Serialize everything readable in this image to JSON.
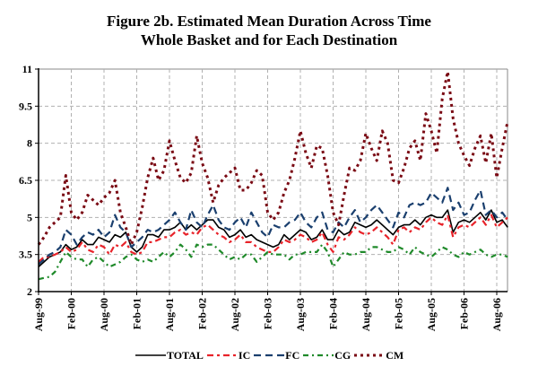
{
  "chart_data": {
    "type": "line",
    "title": "Figure 2b. Estimated Mean Duration Across Time",
    "subtitle": "Whole Basket and for Each Destination",
    "xlabel": "",
    "ylabel": "",
    "ylim": [
      2,
      11
    ],
    "yticks": [
      "2",
      "3.5",
      "5",
      "6.5",
      "8",
      "9.5",
      "11"
    ],
    "ytick_values": [
      2,
      3.5,
      5,
      6.5,
      8,
      9.5,
      11
    ],
    "grid": true,
    "legend_position": "bottom",
    "x_start": "Aug-99",
    "x_frequency": "monthly",
    "xtick_labels": [
      "Aug-99",
      "Feb-00",
      "Aug-00",
      "Feb-01",
      "Aug-01",
      "Feb-02",
      "Aug-02",
      "Feb-03",
      "Aug-03",
      "Feb-04",
      "Aug-04",
      "Feb-05",
      "Aug-05",
      "Feb-06",
      "Aug-06"
    ],
    "xtick_month_index": [
      0,
      6,
      12,
      18,
      24,
      30,
      36,
      42,
      48,
      54,
      60,
      66,
      72,
      78,
      84
    ],
    "n_points": 87,
    "series": [
      {
        "name": "TOTAL",
        "color": "#000000",
        "dash": "solid",
        "values": [
          3.0,
          3.2,
          3.4,
          3.5,
          3.6,
          3.9,
          3.7,
          3.8,
          4.1,
          3.9,
          3.9,
          4.2,
          4.1,
          4.0,
          4.3,
          4.2,
          4.4,
          3.8,
          3.6,
          3.8,
          4.3,
          4.3,
          4.2,
          4.5,
          4.5,
          4.6,
          4.8,
          4.5,
          4.7,
          4.5,
          4.7,
          4.9,
          4.9,
          4.6,
          4.5,
          4.2,
          4.3,
          4.5,
          4.2,
          4.3,
          4.1,
          4.0,
          3.9,
          3.8,
          3.9,
          4.3,
          4.1,
          4.3,
          4.5,
          4.4,
          4.1,
          4.2,
          4.5,
          4.1,
          4.1,
          4.5,
          4.3,
          4.4,
          4.8,
          4.7,
          4.6,
          4.7,
          4.9,
          4.7,
          4.5,
          4.3,
          4.6,
          4.7,
          4.7,
          4.9,
          4.7,
          5.0,
          5.1,
          5.0,
          5.0,
          5.3,
          4.4,
          4.8,
          4.9,
          4.8,
          5.0,
          5.2,
          4.9,
          5.3,
          4.8,
          4.9,
          4.6
        ]
      },
      {
        "name": "IC",
        "color": "#e8232a",
        "dash": "dash",
        "values": [
          3.2,
          3.4,
          3.4,
          3.5,
          3.6,
          3.8,
          3.6,
          3.7,
          4.0,
          3.7,
          3.6,
          3.9,
          3.8,
          3.5,
          3.9,
          3.8,
          4.0,
          3.6,
          3.5,
          3.6,
          4.0,
          4.0,
          4.1,
          4.2,
          4.2,
          4.4,
          4.5,
          4.3,
          4.4,
          4.3,
          4.6,
          4.7,
          4.5,
          4.3,
          4.2,
          4.0,
          4.1,
          4.3,
          4.0,
          4.0,
          3.8,
          3.7,
          3.6,
          3.6,
          3.8,
          4.1,
          4.0,
          4.1,
          4.3,
          4.2,
          4.0,
          4.1,
          4.4,
          3.9,
          3.6,
          4.2,
          4.1,
          4.3,
          4.6,
          4.4,
          4.3,
          4.4,
          4.6,
          4.4,
          4.2,
          3.9,
          4.5,
          4.6,
          4.4,
          4.6,
          4.5,
          4.8,
          5.0,
          4.8,
          4.7,
          5.1,
          4.2,
          4.6,
          4.7,
          4.6,
          4.8,
          5.0,
          4.7,
          5.1,
          4.6,
          4.8,
          5.0
        ]
      },
      {
        "name": "FC",
        "color": "#1a3f6e",
        "dash": "longdash",
        "values": [
          3.1,
          3.3,
          3.5,
          3.6,
          3.8,
          4.5,
          4.3,
          3.9,
          4.2,
          4.4,
          4.3,
          4.5,
          4.2,
          4.4,
          5.1,
          4.6,
          4.4,
          3.8,
          4.0,
          4.2,
          4.5,
          4.4,
          4.5,
          4.7,
          4.9,
          5.2,
          4.8,
          4.5,
          5.3,
          4.8,
          4.6,
          5.1,
          5.5,
          4.9,
          4.6,
          4.5,
          4.8,
          5.0,
          4.6,
          5.2,
          4.8,
          4.4,
          4.2,
          4.7,
          4.6,
          4.6,
          4.8,
          4.9,
          5.2,
          4.8,
          4.6,
          5.0,
          5.2,
          4.5,
          4.4,
          4.8,
          4.6,
          5.0,
          5.3,
          4.8,
          5.0,
          5.3,
          5.5,
          5.2,
          4.9,
          4.6,
          5.2,
          5.0,
          5.5,
          5.6,
          5.5,
          5.6,
          6.0,
          5.8,
          5.6,
          6.2,
          5.3,
          5.6,
          5.1,
          5.2,
          5.7,
          6.1,
          5.1,
          5.3,
          5.0,
          5.2,
          4.9
        ]
      },
      {
        "name": "CG",
        "color": "#1f8a2a",
        "dash": "dashdot",
        "values": [
          2.5,
          2.55,
          2.6,
          2.8,
          3.2,
          3.6,
          3.4,
          3.3,
          3.3,
          3.0,
          3.3,
          3.4,
          3.2,
          3.0,
          3.1,
          3.2,
          3.4,
          3.5,
          3.3,
          3.2,
          3.3,
          3.2,
          3.4,
          3.6,
          3.4,
          3.6,
          3.9,
          3.7,
          3.4,
          3.9,
          3.8,
          3.9,
          3.9,
          3.7,
          3.5,
          3.3,
          3.4,
          3.3,
          3.5,
          3.5,
          3.2,
          3.4,
          3.6,
          3.5,
          3.5,
          3.5,
          3.3,
          3.5,
          3.5,
          3.6,
          3.6,
          3.6,
          3.9,
          3.6,
          3.0,
          3.3,
          3.6,
          3.5,
          3.5,
          3.6,
          3.6,
          3.8,
          3.8,
          3.7,
          3.6,
          3.6,
          3.8,
          3.7,
          3.5,
          3.8,
          3.6,
          3.5,
          3.4,
          3.6,
          3.8,
          3.7,
          3.5,
          3.4,
          3.6,
          3.5,
          3.6,
          3.7,
          3.5,
          3.4,
          3.5,
          3.5,
          3.4
        ]
      },
      {
        "name": "CM",
        "color": "#7a0a14",
        "dash": "dot",
        "values": [
          3.9,
          4.2,
          4.6,
          4.8,
          5.0,
          6.7,
          5.2,
          4.9,
          5.2,
          5.9,
          5.7,
          5.5,
          5.8,
          6.0,
          6.5,
          5.2,
          4.6,
          3.9,
          4.4,
          5.4,
          6.6,
          7.4,
          6.5,
          6.9,
          8.1,
          7.3,
          6.6,
          6.4,
          6.8,
          8.3,
          7.2,
          6.6,
          5.6,
          6.3,
          6.6,
          6.8,
          7.0,
          6.1,
          6.1,
          6.4,
          6.9,
          6.7,
          5.2,
          4.9,
          5.2,
          6.0,
          6.5,
          7.4,
          8.5,
          7.6,
          7.0,
          7.9,
          7.8,
          6.7,
          5.2,
          4.7,
          5.9,
          7.0,
          6.9,
          7.3,
          8.4,
          7.8,
          7.3,
          8.5,
          8.0,
          6.5,
          6.4,
          7.0,
          7.8,
          8.1,
          7.3,
          9.2,
          8.5,
          7.6,
          9.8,
          10.9,
          9.0,
          8.0,
          7.5,
          7.1,
          7.8,
          8.3,
          7.2,
          8.4,
          6.6,
          7.8,
          8.9
        ]
      }
    ]
  }
}
